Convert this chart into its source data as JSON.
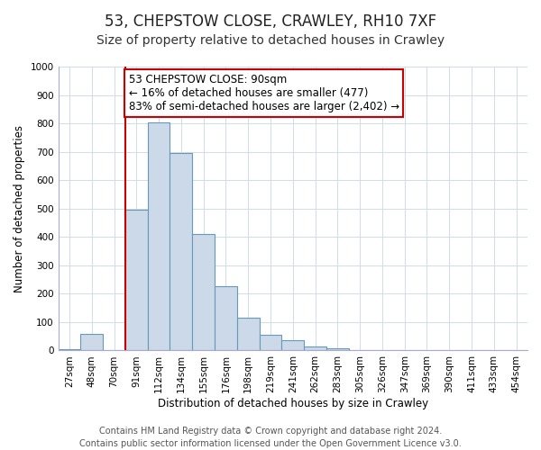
{
  "title": "53, CHEPSTOW CLOSE, CRAWLEY, RH10 7XF",
  "subtitle": "Size of property relative to detached houses in Crawley",
  "xlabel": "Distribution of detached houses by size in Crawley",
  "ylabel": "Number of detached properties",
  "bar_labels": [
    "27sqm",
    "48sqm",
    "70sqm",
    "91sqm",
    "112sqm",
    "134sqm",
    "155sqm",
    "176sqm",
    "198sqm",
    "219sqm",
    "241sqm",
    "262sqm",
    "283sqm",
    "305sqm",
    "326sqm",
    "347sqm",
    "369sqm",
    "390sqm",
    "411sqm",
    "433sqm",
    "454sqm"
  ],
  "bar_heights": [
    5,
    58,
    3,
    495,
    805,
    695,
    410,
    225,
    115,
    55,
    35,
    15,
    8,
    3,
    2,
    1,
    0,
    1,
    0,
    0,
    0
  ],
  "bar_color": "#ccd9e8",
  "bar_edge_color": "#6699bb",
  "vline_x_index": 3,
  "vline_color": "#cc0000",
  "annotation_line1": "53 CHEPSTOW CLOSE: 90sqm",
  "annotation_line2": "← 16% of detached houses are smaller (477)",
  "annotation_line3": "83% of semi-detached houses are larger (2,402) →",
  "annotation_box_color": "#ffffff",
  "annotation_box_edge_color": "#cc0000",
  "ylim": [
    0,
    1000
  ],
  "yticks": [
    0,
    100,
    200,
    300,
    400,
    500,
    600,
    700,
    800,
    900,
    1000
  ],
  "footer_line1": "Contains HM Land Registry data © Crown copyright and database right 2024.",
  "footer_line2": "Contains public sector information licensed under the Open Government Licence v3.0.",
  "title_fontsize": 12,
  "subtitle_fontsize": 10,
  "axis_label_fontsize": 8.5,
  "tick_fontsize": 7.5,
  "annotation_fontsize": 8.5,
  "footer_fontsize": 7,
  "background_color": "#ffffff",
  "grid_color": "#d0dce8"
}
